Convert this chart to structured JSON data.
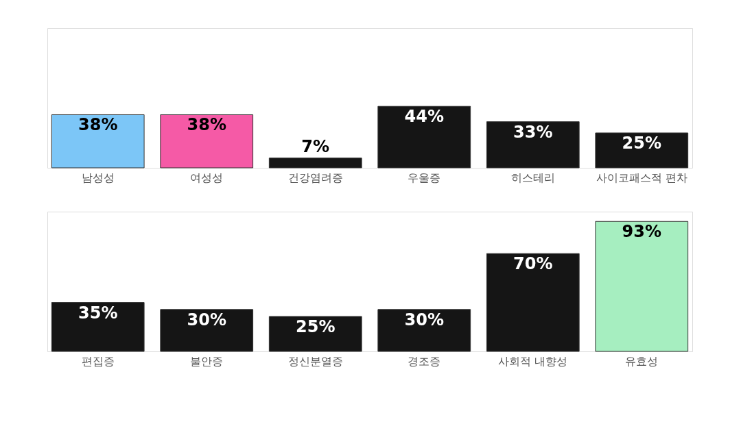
{
  "chart_data": [
    {
      "type": "bar",
      "categories": [
        "남성성",
        "여성성",
        "건강염려증",
        "우울증",
        "히스테리",
        "사이코패스적 편차"
      ],
      "values": [
        38,
        38,
        7,
        44,
        33,
        25
      ],
      "value_labels": [
        "38%",
        "38%",
        "7%",
        "44%",
        "33%",
        "25%"
      ],
      "colors": [
        "#7cc6f7",
        "#f55aa6",
        "#151515",
        "#151515",
        "#151515",
        "#151515"
      ],
      "tick_labels": "x"
    },
    {
      "type": "bar",
      "categories": [
        "편집증",
        "불안증",
        "정신분열증",
        "경조증",
        "사회적 내향성",
        "유효성"
      ],
      "values": [
        35,
        30,
        25,
        30,
        70,
        93
      ],
      "value_labels": [
        "35%",
        "30%",
        "25%",
        "30%",
        "70%",
        "93%"
      ],
      "colors": [
        "#151515",
        "#151515",
        "#151515",
        "#151515",
        "#151515",
        "#a6eec0"
      ],
      "tick_labels": "x"
    }
  ]
}
